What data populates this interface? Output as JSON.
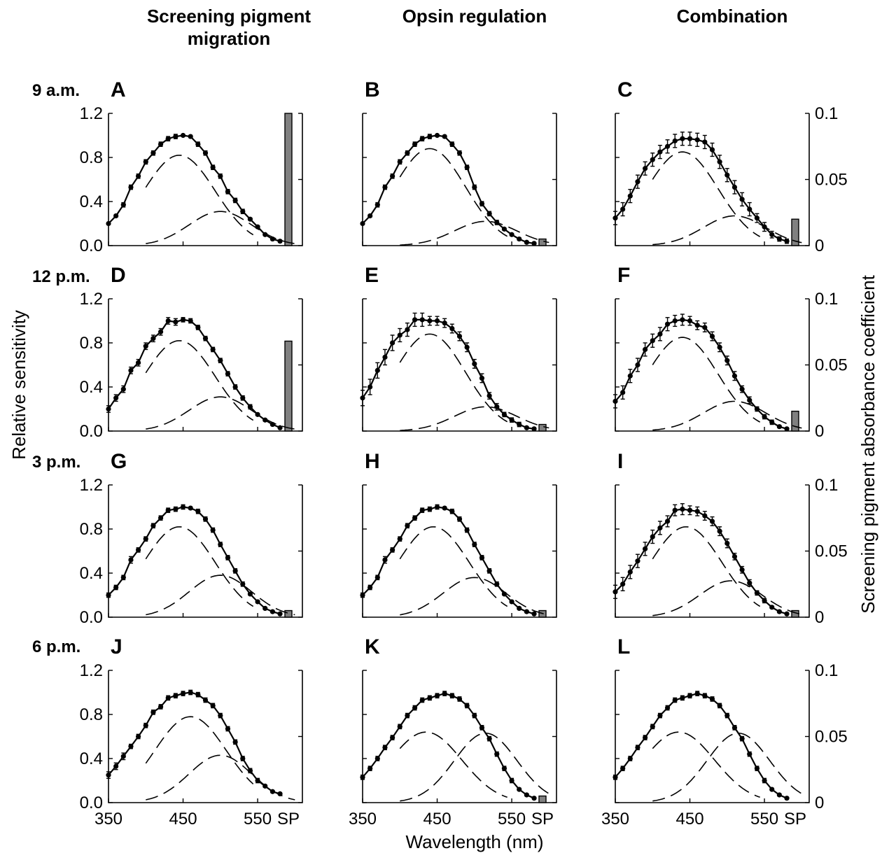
{
  "figure": {
    "column_titles": [
      [
        "Screening pigment",
        "migration"
      ],
      [
        "Opsin regulation"
      ],
      [
        "Combination"
      ]
    ],
    "row_labels": [
      "9 a.m.",
      "12 p.m.",
      "3 p.m.",
      "6 p.m."
    ],
    "xlabel": "Wavelength (nm)",
    "ylabel_left": "Relative sensitivity",
    "ylabel_right": "Screening pigment absorbance coefficient",
    "x_ticks": [
      "350",
      "450",
      "550",
      "SP"
    ],
    "y_ticks": [
      "0.0",
      "0.4",
      "0.8",
      "1.2"
    ],
    "y2_ticks": [
      "0",
      "0.05",
      "0.1"
    ]
  },
  "chart_data": [
    {
      "panel": "A",
      "type": "line",
      "row": "9 a.m.",
      "model": "Screening pigment migration",
      "x": [
        350,
        360,
        370,
        380,
        390,
        400,
        410,
        420,
        430,
        440,
        450,
        460,
        470,
        480,
        490,
        500,
        510,
        520,
        530,
        540,
        550,
        560,
        570,
        580
      ],
      "y": [
        0.2,
        0.27,
        0.37,
        0.53,
        0.63,
        0.76,
        0.84,
        0.92,
        0.97,
        0.99,
        1.0,
        0.99,
        0.92,
        0.84,
        0.71,
        0.63,
        0.49,
        0.41,
        0.31,
        0.24,
        0.17,
        0.1,
        0.06,
        0.04
      ],
      "y_err": [
        0.01,
        0.01,
        0.02,
        0.02,
        0.02,
        0.02,
        0.02,
        0.02,
        0.02,
        0.02,
        0.01,
        0.01,
        0.02,
        0.02,
        0.02,
        0.02,
        0.02,
        0.02,
        0.02,
        0.01,
        0.01,
        0.01,
        0.01,
        0.01
      ],
      "components": {
        "short_peak": 445,
        "short_amp": 0.82,
        "long_peak": 500,
        "long_amp": 0.31
      },
      "sp_value": 0.1,
      "ylim": [
        0,
        1.2
      ],
      "y2lim": [
        0,
        0.1
      ]
    },
    {
      "panel": "B",
      "type": "line",
      "row": "9 a.m.",
      "model": "Opsin regulation",
      "x": [
        350,
        360,
        370,
        380,
        390,
        400,
        410,
        420,
        430,
        440,
        450,
        460,
        470,
        480,
        490,
        500,
        510,
        520,
        530,
        540,
        550,
        560,
        570,
        580
      ],
      "y": [
        0.2,
        0.27,
        0.37,
        0.53,
        0.63,
        0.76,
        0.84,
        0.92,
        0.97,
        0.99,
        1.0,
        0.99,
        0.92,
        0.84,
        0.71,
        0.53,
        0.38,
        0.29,
        0.21,
        0.15,
        0.1,
        0.06,
        0.03,
        0.02
      ],
      "y_err": [
        0.01,
        0.01,
        0.02,
        0.02,
        0.02,
        0.02,
        0.02,
        0.02,
        0.02,
        0.02,
        0.01,
        0.01,
        0.02,
        0.02,
        0.02,
        0.02,
        0.02,
        0.02,
        0.02,
        0.01,
        0.01,
        0.01,
        0.01,
        0.01
      ],
      "components": {
        "short_peak": 440,
        "short_amp": 0.88,
        "long_peak": 515,
        "long_amp": 0.22
      },
      "sp_value": 0.005,
      "ylim": [
        0,
        1.2
      ],
      "y2lim": [
        0,
        0.1
      ]
    },
    {
      "panel": "C",
      "type": "line",
      "row": "9 a.m.",
      "model": "Combination",
      "x": [
        350,
        360,
        370,
        380,
        390,
        400,
        410,
        420,
        430,
        440,
        450,
        460,
        470,
        480,
        490,
        500,
        510,
        520,
        530,
        540,
        550,
        560,
        570,
        580
      ],
      "y": [
        0.25,
        0.33,
        0.45,
        0.58,
        0.7,
        0.78,
        0.85,
        0.9,
        0.95,
        0.97,
        0.97,
        0.96,
        0.94,
        0.87,
        0.76,
        0.64,
        0.53,
        0.42,
        0.33,
        0.25,
        0.17,
        0.1,
        0.06,
        0.04
      ],
      "y_err": [
        0.06,
        0.06,
        0.06,
        0.06,
        0.06,
        0.06,
        0.06,
        0.06,
        0.06,
        0.06,
        0.06,
        0.06,
        0.06,
        0.06,
        0.06,
        0.06,
        0.06,
        0.06,
        0.06,
        0.04,
        0.04,
        0.03,
        0.02,
        0.02
      ],
      "components": {
        "short_peak": 440,
        "short_amp": 0.85,
        "long_peak": 510,
        "long_amp": 0.27
      },
      "sp_value": 0.02,
      "ylim": [
        0,
        1.2
      ],
      "y2lim": [
        0,
        0.1
      ]
    },
    {
      "panel": "D",
      "type": "line",
      "row": "12 p.m.",
      "model": "Screening pigment migration",
      "x": [
        350,
        360,
        370,
        380,
        390,
        400,
        410,
        420,
        430,
        440,
        450,
        460,
        470,
        480,
        490,
        500,
        510,
        520,
        530,
        540,
        550,
        560,
        570,
        580
      ],
      "y": [
        0.2,
        0.3,
        0.38,
        0.55,
        0.62,
        0.77,
        0.84,
        0.9,
        1.0,
        0.99,
        1.01,
        1.0,
        0.94,
        0.84,
        0.74,
        0.64,
        0.52,
        0.4,
        0.3,
        0.22,
        0.15,
        0.1,
        0.06,
        0.03
      ],
      "y_err": [
        0.03,
        0.03,
        0.03,
        0.03,
        0.03,
        0.03,
        0.03,
        0.03,
        0.03,
        0.03,
        0.02,
        0.02,
        0.02,
        0.02,
        0.02,
        0.02,
        0.02,
        0.02,
        0.02,
        0.02,
        0.01,
        0.01,
        0.01,
        0.01
      ],
      "components": {
        "short_peak": 445,
        "short_amp": 0.82,
        "long_peak": 500,
        "long_amp": 0.31
      },
      "sp_value": 0.068,
      "ylim": [
        0,
        1.2
      ],
      "y2lim": [
        0,
        0.1
      ]
    },
    {
      "panel": "E",
      "type": "line",
      "row": "12 p.m.",
      "model": "Opsin regulation",
      "x": [
        350,
        360,
        370,
        380,
        390,
        400,
        410,
        420,
        430,
        440,
        450,
        460,
        470,
        480,
        490,
        500,
        510,
        520,
        530,
        540,
        550,
        560,
        570,
        580
      ],
      "y": [
        0.3,
        0.4,
        0.55,
        0.67,
        0.8,
        0.87,
        0.92,
        1.01,
        1.01,
        1.0,
        1.0,
        0.98,
        0.93,
        0.86,
        0.76,
        0.61,
        0.48,
        0.32,
        0.22,
        0.15,
        0.1,
        0.06,
        0.03,
        0.02
      ],
      "y_err": [
        0.07,
        0.07,
        0.07,
        0.07,
        0.07,
        0.06,
        0.06,
        0.06,
        0.06,
        0.04,
        0.04,
        0.04,
        0.04,
        0.04,
        0.04,
        0.04,
        0.04,
        0.03,
        0.03,
        0.02,
        0.02,
        0.02,
        0.01,
        0.01
      ],
      "components": {
        "short_peak": 440,
        "short_amp": 0.88,
        "long_peak": 515,
        "long_amp": 0.22
      },
      "sp_value": 0.005,
      "ylim": [
        0,
        1.2
      ],
      "y2lim": [
        0,
        0.1
      ]
    },
    {
      "panel": "F",
      "type": "line",
      "row": "12 p.m.",
      "model": "Combination",
      "x": [
        350,
        360,
        370,
        380,
        390,
        400,
        410,
        420,
        430,
        440,
        450,
        460,
        470,
        480,
        490,
        500,
        510,
        520,
        530,
        540,
        550,
        560,
        570,
        580
      ],
      "y": [
        0.27,
        0.35,
        0.5,
        0.6,
        0.74,
        0.82,
        0.88,
        0.97,
        1.0,
        1.01,
        1.0,
        0.96,
        0.94,
        0.86,
        0.76,
        0.64,
        0.5,
        0.38,
        0.28,
        0.2,
        0.13,
        0.08,
        0.04,
        0.02
      ],
      "y_err": [
        0.06,
        0.06,
        0.06,
        0.06,
        0.06,
        0.06,
        0.06,
        0.06,
        0.05,
        0.05,
        0.04,
        0.04,
        0.04,
        0.04,
        0.04,
        0.04,
        0.04,
        0.03,
        0.03,
        0.02,
        0.02,
        0.02,
        0.01,
        0.01
      ],
      "components": {
        "short_peak": 440,
        "short_amp": 0.85,
        "long_peak": 510,
        "long_amp": 0.27
      },
      "sp_value": 0.015,
      "ylim": [
        0,
        1.2
      ],
      "y2lim": [
        0,
        0.1
      ]
    },
    {
      "panel": "G",
      "type": "line",
      "row": "3 p.m.",
      "model": "Screening pigment migration",
      "x": [
        350,
        360,
        370,
        380,
        390,
        400,
        410,
        420,
        430,
        440,
        450,
        460,
        470,
        480,
        490,
        500,
        510,
        520,
        530,
        540,
        550,
        560,
        570,
        580
      ],
      "y": [
        0.2,
        0.27,
        0.36,
        0.52,
        0.61,
        0.71,
        0.83,
        0.9,
        0.97,
        0.98,
        1.0,
        0.99,
        0.96,
        0.89,
        0.79,
        0.66,
        0.54,
        0.42,
        0.3,
        0.21,
        0.14,
        0.08,
        0.05,
        0.03
      ],
      "y_err": [
        0.02,
        0.02,
        0.02,
        0.03,
        0.02,
        0.02,
        0.02,
        0.02,
        0.02,
        0.02,
        0.02,
        0.01,
        0.02,
        0.02,
        0.02,
        0.02,
        0.02,
        0.02,
        0.02,
        0.01,
        0.01,
        0.01,
        0.01,
        0.01
      ],
      "components": {
        "short_peak": 445,
        "short_amp": 0.82,
        "long_peak": 500,
        "long_amp": 0.38
      },
      "sp_value": 0.005,
      "ylim": [
        0,
        1.2
      ],
      "y2lim": [
        0,
        0.1
      ]
    },
    {
      "panel": "H",
      "type": "line",
      "row": "3 p.m.",
      "model": "Opsin regulation",
      "x": [
        350,
        360,
        370,
        380,
        390,
        400,
        410,
        420,
        430,
        440,
        450,
        460,
        470,
        480,
        490,
        500,
        510,
        520,
        530,
        540,
        550,
        560,
        570,
        580
      ],
      "y": [
        0.2,
        0.27,
        0.36,
        0.52,
        0.61,
        0.71,
        0.83,
        0.9,
        0.97,
        0.98,
        1.0,
        0.99,
        0.96,
        0.89,
        0.79,
        0.66,
        0.54,
        0.42,
        0.3,
        0.21,
        0.14,
        0.08,
        0.05,
        0.03
      ],
      "y_err": [
        0.02,
        0.02,
        0.02,
        0.03,
        0.02,
        0.02,
        0.02,
        0.02,
        0.02,
        0.02,
        0.02,
        0.01,
        0.02,
        0.02,
        0.02,
        0.02,
        0.02,
        0.02,
        0.02,
        0.01,
        0.01,
        0.01,
        0.01,
        0.01
      ],
      "components": {
        "short_peak": 445,
        "short_amp": 0.82,
        "long_peak": 500,
        "long_amp": 0.36
      },
      "sp_value": 0.005,
      "ylim": [
        0,
        1.2
      ],
      "y2lim": [
        0,
        0.1
      ]
    },
    {
      "panel": "I",
      "type": "line",
      "row": "3 p.m.",
      "model": "Combination",
      "x": [
        350,
        360,
        370,
        380,
        390,
        400,
        410,
        420,
        430,
        440,
        450,
        460,
        470,
        480,
        490,
        500,
        510,
        520,
        530,
        540,
        550,
        560,
        570,
        580
      ],
      "y": [
        0.23,
        0.3,
        0.41,
        0.51,
        0.62,
        0.73,
        0.81,
        0.87,
        0.97,
        0.98,
        0.97,
        0.96,
        0.92,
        0.87,
        0.78,
        0.67,
        0.55,
        0.43,
        0.31,
        0.22,
        0.15,
        0.09,
        0.05,
        0.03
      ],
      "y_err": [
        0.06,
        0.06,
        0.06,
        0.06,
        0.06,
        0.06,
        0.06,
        0.05,
        0.05,
        0.05,
        0.04,
        0.04,
        0.04,
        0.04,
        0.04,
        0.04,
        0.03,
        0.03,
        0.03,
        0.02,
        0.02,
        0.01,
        0.01,
        0.01
      ],
      "components": {
        "short_peak": 445,
        "short_amp": 0.82,
        "long_peak": 505,
        "long_amp": 0.33
      },
      "sp_value": 0.005,
      "ylim": [
        0,
        1.2
      ],
      "y2lim": [
        0,
        0.1
      ]
    },
    {
      "panel": "J",
      "type": "line",
      "row": "6 p.m.",
      "model": "Screening pigment migration",
      "x": [
        350,
        360,
        370,
        380,
        390,
        400,
        410,
        420,
        430,
        440,
        450,
        460,
        470,
        480,
        490,
        500,
        510,
        520,
        530,
        540,
        550,
        560,
        570,
        580
      ],
      "y": [
        0.25,
        0.33,
        0.42,
        0.51,
        0.6,
        0.7,
        0.82,
        0.87,
        0.95,
        0.97,
        0.99,
        1.0,
        0.98,
        0.93,
        0.88,
        0.79,
        0.67,
        0.55,
        0.4,
        0.29,
        0.2,
        0.15,
        0.1,
        0.08
      ],
      "y_err": [
        0.03,
        0.03,
        0.03,
        0.02,
        0.02,
        0.02,
        0.02,
        0.02,
        0.02,
        0.02,
        0.02,
        0.02,
        0.02,
        0.02,
        0.02,
        0.02,
        0.02,
        0.02,
        0.02,
        0.02,
        0.02,
        0.01,
        0.01,
        0.01
      ],
      "components": {
        "short_peak": 460,
        "short_amp": 0.78,
        "long_peak": 500,
        "long_amp": 0.43
      },
      "sp_value": 0,
      "ylim": [
        0,
        1.2
      ],
      "y2lim": [
        0,
        0.1
      ]
    },
    {
      "panel": "K",
      "type": "line",
      "row": "6 p.m.",
      "model": "Opsin regulation",
      "x": [
        350,
        360,
        370,
        380,
        390,
        400,
        410,
        420,
        430,
        440,
        450,
        460,
        470,
        480,
        490,
        500,
        510,
        520,
        530,
        540,
        550,
        560,
        570,
        580
      ],
      "y": [
        0.23,
        0.31,
        0.4,
        0.5,
        0.59,
        0.69,
        0.79,
        0.86,
        0.93,
        0.95,
        0.97,
        0.99,
        0.97,
        0.94,
        0.88,
        0.79,
        0.68,
        0.58,
        0.44,
        0.31,
        0.2,
        0.12,
        0.07,
        0.04
      ],
      "y_err": [
        0.02,
        0.02,
        0.02,
        0.02,
        0.02,
        0.02,
        0.02,
        0.02,
        0.02,
        0.02,
        0.02,
        0.02,
        0.02,
        0.02,
        0.02,
        0.02,
        0.02,
        0.02,
        0.02,
        0.02,
        0.02,
        0.01,
        0.01,
        0.01
      ],
      "components": {
        "short_peak": 435,
        "short_amp": 0.64,
        "long_peak": 515,
        "long_amp": 0.63
      },
      "sp_value": 0.005,
      "ylim": [
        0,
        1.2
      ],
      "y2lim": [
        0,
        0.1
      ]
    },
    {
      "panel": "L",
      "type": "line",
      "row": "6 p.m.",
      "model": "Combination",
      "x": [
        350,
        360,
        370,
        380,
        390,
        400,
        410,
        420,
        430,
        440,
        450,
        460,
        470,
        480,
        490,
        500,
        510,
        520,
        530,
        540,
        550,
        560,
        570,
        580
      ],
      "y": [
        0.23,
        0.31,
        0.4,
        0.5,
        0.59,
        0.69,
        0.79,
        0.86,
        0.93,
        0.95,
        0.97,
        0.99,
        0.97,
        0.94,
        0.88,
        0.79,
        0.68,
        0.58,
        0.44,
        0.31,
        0.2,
        0.12,
        0.07,
        0.04
      ],
      "y_err": [
        0.02,
        0.02,
        0.02,
        0.02,
        0.02,
        0.02,
        0.02,
        0.02,
        0.02,
        0.02,
        0.02,
        0.02,
        0.02,
        0.02,
        0.02,
        0.02,
        0.02,
        0.02,
        0.02,
        0.02,
        0.02,
        0.01,
        0.01,
        0.01
      ],
      "components": {
        "short_peak": 435,
        "short_amp": 0.64,
        "long_peak": 515,
        "long_amp": 0.63
      },
      "sp_value": 0,
      "ylim": [
        0,
        1.2
      ],
      "y2lim": [
        0,
        0.1
      ]
    }
  ]
}
